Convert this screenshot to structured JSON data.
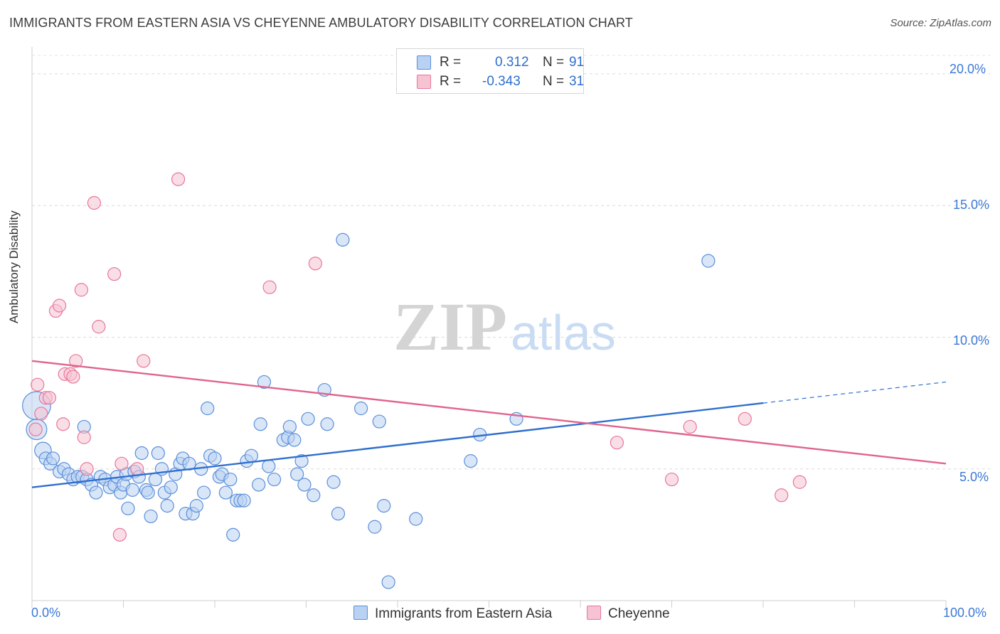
{
  "title": "IMMIGRANTS FROM EASTERN ASIA VS CHEYENNE AMBULATORY DISABILITY CORRELATION CHART",
  "source": "Source: ZipAtlas.com",
  "watermark": {
    "zip": "ZIP",
    "atlas": "atlas"
  },
  "legend": {
    "r_label": "R =",
    "n_label": "N =",
    "series": [
      {
        "name": "Immigrants from Eastern Asia",
        "r": "0.312",
        "n": "91",
        "color": "#5b8fd9",
        "fill": "#b9d1f2"
      },
      {
        "name": "Cheyenne",
        "r": "-0.343",
        "n": "31",
        "color": "#e8779a",
        "fill": "#f6c3d2"
      }
    ]
  },
  "chart_data": {
    "type": "scatter",
    "xlabel": "",
    "ylabel": "Ambulatory Disability",
    "x_ticks": [
      "0.0%",
      "100.0%"
    ],
    "y_ticks": [
      "5.0%",
      "10.0%",
      "15.0%",
      "20.0%"
    ],
    "xlim": [
      0,
      100
    ],
    "ylim": [
      0,
      20.7
    ],
    "grid": true,
    "legend_position": "top-center",
    "series": [
      {
        "name": "Immigrants from Eastern Asia",
        "color": "#5b8fd9",
        "trend": {
          "x0": 0,
          "y0": 4.3,
          "x1": 80,
          "y1": 7.5,
          "dash_to_x": 100,
          "dash_to_y": 8.3
        },
        "points": [
          [
            0.5,
            7.4,
            2.2
          ],
          [
            0.5,
            6.5,
            1.6
          ],
          [
            1.2,
            5.7,
            1.3
          ],
          [
            1.5,
            5.4,
            1
          ],
          [
            2,
            5.2,
            1
          ],
          [
            2.3,
            5.4,
            1
          ],
          [
            3,
            4.9,
            1
          ],
          [
            3.5,
            5,
            1
          ],
          [
            4,
            4.8,
            1
          ],
          [
            4.5,
            4.6,
            1
          ],
          [
            5,
            4.7,
            1
          ],
          [
            5.5,
            4.7,
            1
          ],
          [
            5.7,
            6.6,
            1
          ],
          [
            6,
            4.6,
            1
          ],
          [
            6.5,
            4.4,
            1
          ],
          [
            7,
            4.1,
            1
          ],
          [
            7.5,
            4.7,
            1
          ],
          [
            8,
            4.6,
            1
          ],
          [
            8.5,
            4.3,
            1
          ],
          [
            9,
            4.4,
            1
          ],
          [
            9.3,
            4.7,
            1
          ],
          [
            9.7,
            4.1,
            1
          ],
          [
            10,
            4.4,
            1
          ],
          [
            10.3,
            4.8,
            1
          ],
          [
            10.5,
            3.5,
            1
          ],
          [
            11,
            4.2,
            1
          ],
          [
            11.2,
            4.9,
            1
          ],
          [
            11.7,
            4.7,
            1
          ],
          [
            12,
            5.6,
            1
          ],
          [
            12.5,
            4.2,
            1
          ],
          [
            12.7,
            4.1,
            1
          ],
          [
            13,
            3.2,
            1
          ],
          [
            13.5,
            4.6,
            1
          ],
          [
            13.8,
            5.6,
            1
          ],
          [
            14.2,
            5,
            1
          ],
          [
            14.5,
            4.1,
            1
          ],
          [
            14.8,
            3.6,
            1
          ],
          [
            15.2,
            4.3,
            1
          ],
          [
            15.7,
            4.8,
            1
          ],
          [
            16.2,
            5.2,
            1
          ],
          [
            16.5,
            5.4,
            1
          ],
          [
            16.8,
            3.3,
            1
          ],
          [
            17.2,
            5.2,
            1
          ],
          [
            17.6,
            3.3,
            1
          ],
          [
            18,
            3.6,
            1
          ],
          [
            18.5,
            5,
            1
          ],
          [
            18.8,
            4.1,
            1
          ],
          [
            19.2,
            7.3,
            1
          ],
          [
            19.5,
            5.5,
            1
          ],
          [
            20,
            5.4,
            1
          ],
          [
            20.5,
            4.7,
            1
          ],
          [
            20.8,
            4.8,
            1
          ],
          [
            21.2,
            4.1,
            1
          ],
          [
            21.7,
            4.6,
            1
          ],
          [
            22,
            2.5,
            1
          ],
          [
            22.4,
            3.8,
            1
          ],
          [
            22.8,
            3.8,
            1
          ],
          [
            23.2,
            3.8,
            1
          ],
          [
            23.5,
            5.3,
            1
          ],
          [
            24,
            5.5,
            1
          ],
          [
            24.8,
            4.4,
            1
          ],
          [
            25,
            6.7,
            1
          ],
          [
            25.4,
            8.3,
            1
          ],
          [
            25.9,
            5.1,
            1
          ],
          [
            26.5,
            4.6,
            1
          ],
          [
            27.5,
            6.1,
            1
          ],
          [
            28,
            6.2,
            1
          ],
          [
            28.2,
            6.6,
            1
          ],
          [
            28.7,
            6.1,
            1
          ],
          [
            29,
            4.8,
            1
          ],
          [
            29.5,
            5.3,
            1
          ],
          [
            29.8,
            4.4,
            1
          ],
          [
            30.2,
            6.9,
            1
          ],
          [
            30.8,
            4,
            1
          ],
          [
            32,
            8,
            1
          ],
          [
            32.3,
            6.7,
            1
          ],
          [
            33,
            4.5,
            1
          ],
          [
            33.5,
            3.3,
            1
          ],
          [
            34,
            13.7,
            1
          ],
          [
            36,
            7.3,
            1
          ],
          [
            37.5,
            2.8,
            1
          ],
          [
            38,
            6.8,
            1
          ],
          [
            38.5,
            3.6,
            1
          ],
          [
            39,
            0.7,
            1
          ],
          [
            42,
            3.1,
            1
          ],
          [
            48,
            5.3,
            1
          ],
          [
            49,
            6.3,
            1
          ],
          [
            53,
            6.9,
            1
          ],
          [
            74,
            12.9,
            1
          ]
        ]
      },
      {
        "name": "Cheyenne",
        "color": "#e8779a",
        "trend": {
          "x0": 0,
          "y0": 9.1,
          "x1": 100,
          "y1": 5.2
        },
        "points": [
          [
            0.4,
            6.5,
            1
          ],
          [
            0.6,
            8.2,
            1
          ],
          [
            1,
            7.1,
            1
          ],
          [
            1.5,
            7.7,
            1
          ],
          [
            1.9,
            7.7,
            1
          ],
          [
            2.6,
            11,
            1
          ],
          [
            3,
            11.2,
            1
          ],
          [
            3.4,
            6.7,
            1
          ],
          [
            3.6,
            8.6,
            1
          ],
          [
            4.2,
            8.6,
            1
          ],
          [
            4.5,
            8.5,
            1
          ],
          [
            4.8,
            9.1,
            1
          ],
          [
            5.4,
            11.8,
            1
          ],
          [
            5.7,
            6.2,
            1
          ],
          [
            6,
            5,
            1
          ],
          [
            6.8,
            15.1,
            1
          ],
          [
            7.3,
            10.4,
            1
          ],
          [
            9,
            12.4,
            1
          ],
          [
            9.6,
            2.5,
            1
          ],
          [
            9.8,
            5.2,
            1
          ],
          [
            11.5,
            5,
            1
          ],
          [
            12.2,
            9.1,
            1
          ],
          [
            16,
            16,
            1
          ],
          [
            26,
            11.9,
            1
          ],
          [
            31,
            12.8,
            1
          ],
          [
            64,
            6,
            1
          ],
          [
            70,
            4.6,
            1
          ],
          [
            72,
            6.6,
            1
          ],
          [
            78,
            6.9,
            1
          ],
          [
            82,
            4,
            1
          ],
          [
            84,
            4.5,
            1
          ]
        ]
      }
    ]
  }
}
